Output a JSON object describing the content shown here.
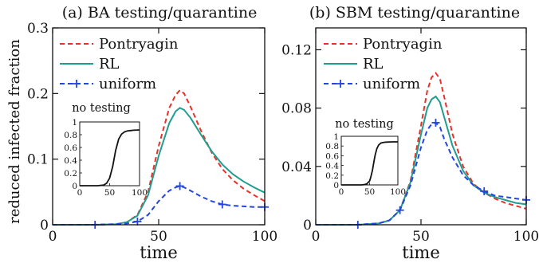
{
  "figure": {
    "ylabel": "reduced infected fraction"
  },
  "chart_data": [
    {
      "type": "line",
      "title": "(a) BA testing/quarantine",
      "xlabel": "time",
      "ylabel": "reduced infected fraction",
      "xlim": [
        0,
        100
      ],
      "ylim": [
        0,
        0.3
      ],
      "xticks": [
        "0",
        "50",
        "100"
      ],
      "yticks": [
        "0",
        "0.1",
        "0.2",
        "0.3"
      ],
      "legend_position": "top-left",
      "grid": false,
      "series": [
        {
          "name": "Pontryagin",
          "color": "#e8312a",
          "style": "dashed",
          "x": [
            0,
            20,
            30,
            35,
            40,
            45,
            50,
            55,
            58,
            60,
            62,
            65,
            70,
            75,
            80,
            85,
            90,
            95,
            100
          ],
          "y": [
            0,
            0,
            0.001,
            0.004,
            0.015,
            0.05,
            0.12,
            0.178,
            0.198,
            0.205,
            0.2,
            0.18,
            0.143,
            0.11,
            0.085,
            0.068,
            0.055,
            0.045,
            0.036
          ]
        },
        {
          "name": "RL",
          "color": "#1f9e8f",
          "style": "solid",
          "x": [
            0,
            20,
            30,
            35,
            40,
            45,
            50,
            55,
            58,
            60,
            62,
            65,
            70,
            75,
            80,
            85,
            90,
            95,
            100
          ],
          "y": [
            0,
            0,
            0.001,
            0.004,
            0.014,
            0.045,
            0.105,
            0.155,
            0.173,
            0.178,
            0.175,
            0.163,
            0.137,
            0.112,
            0.092,
            0.077,
            0.066,
            0.057,
            0.049
          ]
        },
        {
          "name": "uniform",
          "color": "#2346e0",
          "style": "dashed",
          "markers": [
            20,
            40,
            60,
            80,
            100
          ],
          "x": [
            0,
            20,
            30,
            35,
            40,
            45,
            50,
            55,
            58,
            60,
            62,
            65,
            70,
            75,
            80,
            85,
            90,
            95,
            100
          ],
          "y": [
            0,
            0,
            0.001,
            0.002,
            0.005,
            0.015,
            0.036,
            0.052,
            0.057,
            0.059,
            0.057,
            0.052,
            0.043,
            0.036,
            0.031,
            0.029,
            0.028,
            0.027,
            0.027
          ]
        }
      ],
      "inset": {
        "title": "no testing",
        "xlim": [
          0,
          100
        ],
        "ylim": [
          0,
          1
        ],
        "xticks": [
          "0",
          "50",
          "100"
        ],
        "yticks": [
          "0",
          "0.2",
          "0.4",
          "0.6",
          "0.8",
          "1"
        ],
        "series": [
          {
            "color": "#111111",
            "x": [
              0,
              30,
              40,
              45,
              50,
              55,
              60,
              65,
              70,
              75,
              80,
              85,
              90,
              100
            ],
            "y": [
              0,
              0,
              0.01,
              0.04,
              0.12,
              0.3,
              0.55,
              0.73,
              0.81,
              0.845,
              0.86,
              0.865,
              0.87,
              0.875
            ]
          }
        ]
      }
    },
    {
      "type": "line",
      "title": "(b) SBM testing/quarantine",
      "xlabel": "time",
      "ylabel": "",
      "xlim": [
        0,
        100
      ],
      "ylim": [
        0,
        0.135
      ],
      "xticks": [
        "0",
        "50",
        "100"
      ],
      "yticks": [
        "0",
        "0.04",
        "0.08",
        "0.12"
      ],
      "legend_position": "top-left",
      "grid": false,
      "series": [
        {
          "name": "Pontryagin",
          "color": "#e8312a",
          "style": "dashed",
          "x": [
            0,
            20,
            30,
            35,
            40,
            45,
            50,
            53,
            55,
            57,
            59,
            61,
            65,
            70,
            75,
            80,
            85,
            90,
            95,
            100
          ],
          "y": [
            0,
            0,
            0.001,
            0.003,
            0.01,
            0.03,
            0.068,
            0.092,
            0.101,
            0.104,
            0.1,
            0.088,
            0.062,
            0.04,
            0.028,
            0.022,
            0.018,
            0.015,
            0.013,
            0.011
          ]
        },
        {
          "name": "RL",
          "color": "#1f9e8f",
          "style": "solid",
          "x": [
            0,
            20,
            30,
            35,
            40,
            45,
            50,
            53,
            55,
            57,
            59,
            61,
            65,
            70,
            75,
            80,
            85,
            90,
            95,
            100
          ],
          "y": [
            0,
            0,
            0.001,
            0.003,
            0.01,
            0.029,
            0.062,
            0.08,
            0.086,
            0.088,
            0.084,
            0.074,
            0.054,
            0.037,
            0.027,
            0.022,
            0.019,
            0.017,
            0.015,
            0.014
          ]
        },
        {
          "name": "uniform",
          "color": "#2346e0",
          "style": "dashed",
          "markers": [
            20,
            40,
            57,
            80,
            100
          ],
          "x": [
            0,
            20,
            30,
            35,
            40,
            45,
            50,
            53,
            55,
            57,
            59,
            61,
            65,
            70,
            75,
            80,
            85,
            90,
            95,
            100
          ],
          "y": [
            0,
            0,
            0.001,
            0.003,
            0.01,
            0.027,
            0.053,
            0.065,
            0.069,
            0.07,
            0.067,
            0.059,
            0.046,
            0.034,
            0.027,
            0.023,
            0.02,
            0.019,
            0.018,
            0.017
          ]
        }
      ],
      "inset": {
        "title": "no testing",
        "xlim": [
          0,
          100
        ],
        "ylim": [
          0,
          1
        ],
        "xticks": [
          "0",
          "50",
          "100"
        ],
        "yticks": [
          "0",
          "0.2",
          "0.4",
          "0.6",
          "0.8",
          "1"
        ],
        "series": [
          {
            "color": "#111111",
            "x": [
              0,
              35,
              40,
              45,
              50,
              52,
              55,
              58,
              60,
              63,
              66,
              70,
              75,
              80,
              90,
              100
            ],
            "y": [
              0,
              0,
              0.005,
              0.02,
              0.08,
              0.15,
              0.3,
              0.5,
              0.62,
              0.75,
              0.82,
              0.86,
              0.875,
              0.88,
              0.885,
              0.885
            ]
          }
        ]
      }
    }
  ]
}
